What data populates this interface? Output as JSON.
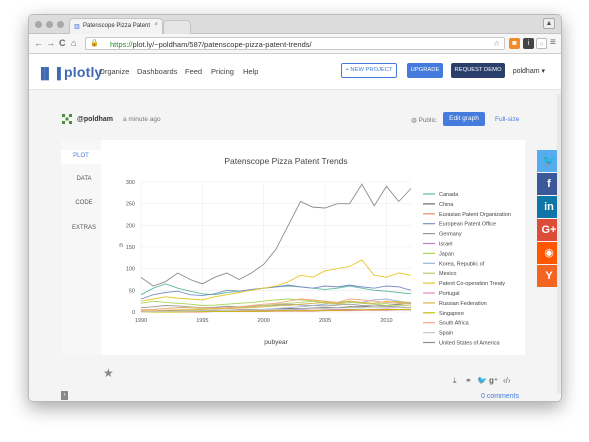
{
  "browser": {
    "tab_title": "Patenscope Pizza Patent",
    "tab_close": "×",
    "url_scheme": "https://",
    "url_rest": "plot.ly/~poldham/587/patenscope-pizza-patent-trends/"
  },
  "header": {
    "logo_text": "plotly",
    "menu": [
      "Organize",
      "Dashboards",
      "Feed",
      "Pricing",
      "Help"
    ],
    "new_project": "+ NEW PROJECT",
    "upgrade": "UPGRADE",
    "request_demo": "REQUEST DEMO",
    "user": "poldham ▾"
  },
  "meta": {
    "author": "@poldham",
    "time": "a minute ago",
    "public": "Public",
    "edit_graph": "Edit graph",
    "full_size": "Full-size"
  },
  "side_tabs": [
    "PLOT",
    "DATA",
    "CODE",
    "EXTRAS"
  ],
  "footer": {
    "comments": "0 comments",
    "r_badge": "r"
  },
  "colors": {
    "accent": "#447bdc",
    "dark_btn": "#2b3f6b",
    "brand": "#3e6bb3"
  },
  "social": [
    {
      "icon": "twitter-icon",
      "glyph": "🐦",
      "color": "#55acee"
    },
    {
      "icon": "facebook-icon",
      "glyph": "f",
      "color": "#3b5998"
    },
    {
      "icon": "linkedin-icon",
      "glyph": "in",
      "color": "#0e76a8"
    },
    {
      "icon": "google-plus-icon",
      "glyph": "G+",
      "color": "#dd4b39"
    },
    {
      "icon": "reddit-icon",
      "glyph": "◉",
      "color": "#ff5700"
    },
    {
      "icon": "ycombinator-icon",
      "glyph": "Y",
      "color": "#f26522"
    }
  ],
  "chart_data": {
    "type": "line",
    "title": "Patenscope Pizza Patent Trends",
    "xlabel": "pubyear",
    "ylabel": "n",
    "xlim": [
      1990,
      2012
    ],
    "ylim": [
      0,
      300
    ],
    "xticks": [
      1990,
      1995,
      2000,
      2005,
      2010
    ],
    "yticks": [
      0,
      50,
      100,
      150,
      200,
      250,
      300
    ],
    "legend_position": "right",
    "grid": true,
    "x": [
      1990,
      1991,
      1992,
      1993,
      1994,
      1995,
      1996,
      1997,
      1998,
      1999,
      2000,
      2001,
      2002,
      2003,
      2004,
      2005,
      2006,
      2007,
      2008,
      2009,
      2010,
      2011,
      2012
    ],
    "series": [
      {
        "name": "Canada",
        "color": "#5dbb9f",
        "values": [
          40,
          55,
          65,
          55,
          48,
          42,
          40,
          45,
          48,
          52,
          55,
          58,
          60,
          58,
          55,
          52,
          55,
          60,
          55,
          50,
          48,
          45,
          42
        ]
      },
      {
        "name": "China",
        "color": "#6a6a6a",
        "values": [
          2,
          2,
          2,
          3,
          3,
          3,
          4,
          4,
          5,
          6,
          6,
          7,
          8,
          8,
          9,
          10,
          10,
          12,
          12,
          14,
          15,
          18,
          20
        ]
      },
      {
        "name": "Eurasian Patent Organization",
        "color": "#ef8a62",
        "values": [
          0,
          0,
          0,
          0,
          0,
          0,
          1,
          1,
          1,
          1,
          1,
          2,
          2,
          2,
          2,
          3,
          3,
          3,
          4,
          4,
          4,
          5,
          5
        ]
      },
      {
        "name": "European Patent Office",
        "color": "#7a8fc8",
        "values": [
          30,
          40,
          45,
          48,
          40,
          38,
          42,
          50,
          48,
          52,
          55,
          58,
          62,
          58,
          55,
          60,
          58,
          62,
          58,
          55,
          60,
          58,
          50
        ]
      },
      {
        "name": "Germany",
        "color": "#999999",
        "values": [
          10,
          12,
          15,
          14,
          12,
          10,
          11,
          13,
          12,
          14,
          15,
          16,
          18,
          16,
          15,
          14,
          16,
          18,
          15,
          14,
          13,
          12,
          10
        ]
      },
      {
        "name": "Israel",
        "color": "#c77dc4",
        "values": [
          0,
          1,
          1,
          1,
          2,
          2,
          2,
          3,
          3,
          3,
          4,
          4,
          5,
          5,
          4,
          5,
          6,
          6,
          5,
          6,
          7,
          6,
          5
        ]
      },
      {
        "name": "Japan",
        "color": "#a6d854",
        "values": [
          20,
          25,
          22,
          20,
          18,
          15,
          16,
          18,
          20,
          22,
          25,
          28,
          30,
          28,
          26,
          24,
          22,
          25,
          20,
          18,
          20,
          22,
          20
        ]
      },
      {
        "name": "Korea, Republic of",
        "color": "#9ab5d8",
        "values": [
          0,
          0,
          1,
          1,
          1,
          2,
          2,
          3,
          3,
          5,
          6,
          8,
          10,
          12,
          15,
          18,
          20,
          25,
          22,
          28,
          30,
          25,
          20
        ]
      },
      {
        "name": "Mexico",
        "color": "#b5cf6b",
        "values": [
          5,
          6,
          8,
          10,
          9,
          8,
          7,
          8,
          10,
          12,
          15,
          18,
          20,
          22,
          25,
          20,
          18,
          22,
          20,
          18,
          15,
          16,
          14
        ]
      },
      {
        "name": "Patent Co-operation Treaty",
        "color": "#e6c82a",
        "values": [
          25,
          30,
          35,
          32,
          30,
          28,
          35,
          40,
          45,
          50,
          55,
          60,
          70,
          85,
          80,
          95,
          100,
          105,
          120,
          85,
          80,
          90,
          85
        ]
      },
      {
        "name": "Portugal",
        "color": "#e78ac3",
        "values": [
          0,
          0,
          0,
          1,
          1,
          1,
          1,
          2,
          2,
          2,
          2,
          3,
          3,
          3,
          3,
          4,
          4,
          4,
          4,
          5,
          5,
          5,
          5
        ]
      },
      {
        "name": "Russian Federation",
        "color": "#d9b340",
        "values": [
          2,
          3,
          4,
          5,
          5,
          6,
          7,
          8,
          9,
          10,
          12,
          14,
          15,
          18,
          20,
          22,
          20,
          25,
          22,
          20,
          25,
          24,
          22
        ]
      },
      {
        "name": "Singapore",
        "color": "#bfbf00",
        "values": [
          0,
          0,
          0,
          0,
          1,
          1,
          1,
          1,
          2,
          2,
          2,
          3,
          3,
          3,
          4,
          4,
          4,
          5,
          5,
          5,
          6,
          6,
          6
        ]
      },
      {
        "name": "South Africa",
        "color": "#f4a582",
        "values": [
          5,
          6,
          8,
          10,
          12,
          10,
          9,
          10,
          12,
          15,
          18,
          20,
          25,
          30,
          28,
          25,
          22,
          30,
          28,
          25,
          22,
          20,
          18
        ]
      },
      {
        "name": "Spain",
        "color": "#c9c9c9",
        "values": [
          0,
          1,
          1,
          2,
          2,
          3,
          3,
          4,
          4,
          5,
          5,
          6,
          6,
          7,
          8,
          8,
          9,
          10,
          9,
          10,
          11,
          10,
          9
        ]
      },
      {
        "name": "United States of America",
        "color": "#8c8c8c",
        "values": [
          80,
          60,
          70,
          90,
          75,
          65,
          80,
          90,
          75,
          90,
          110,
          145,
          200,
          255,
          242,
          240,
          250,
          250,
          295,
          245,
          290,
          255,
          285
        ]
      }
    ]
  }
}
